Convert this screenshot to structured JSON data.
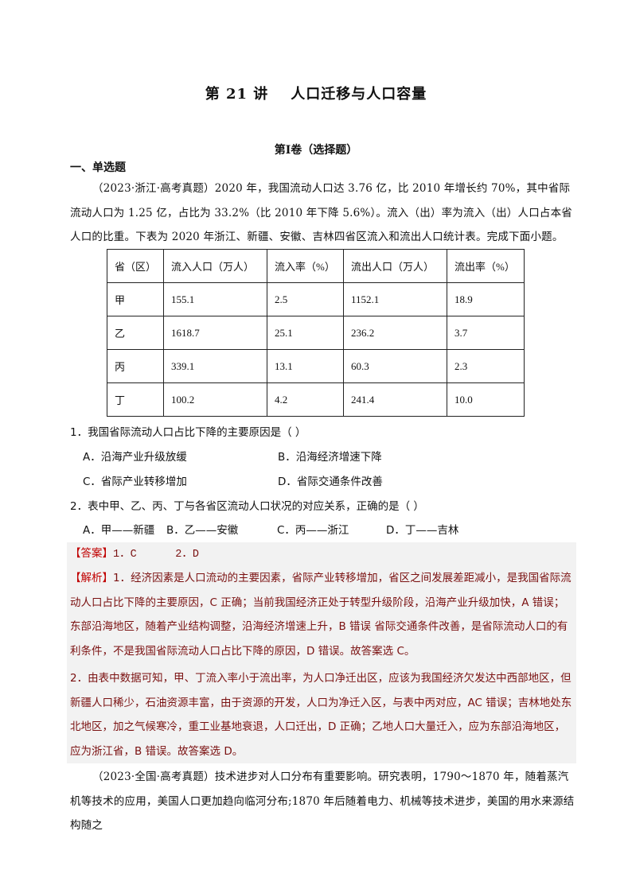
{
  "title": {
    "lecture": "第 21 讲",
    "topic": "人口迁移与人口容量"
  },
  "part": "第I卷（选择题）",
  "section": "一、单选题",
  "intro1": "（2023·浙江·高考真题）2020 年，我国流动人口达 3.76 亿，比 2010 年增长约 70%，其中省际流动人口为 1.25 亿，占比为 33.2%（比 2010 年下降 5.6%）。流入（出）率为流入（出）人口占本省人口的比重。下表为 2020 年浙江、新疆、安徽、吉林四省区流入和流出人口统计表。完成下面小题。",
  "table": {
    "headers": [
      "省（区）",
      "流入人口（万人）",
      "流入率（%）",
      "流出人口（万人）",
      "流出率（%）"
    ],
    "rows": [
      [
        "甲",
        "155.1",
        "2.5",
        "1152.1",
        "18.9"
      ],
      [
        "乙",
        "1618.7",
        "25.1",
        "236.2",
        "3.7"
      ],
      [
        "丙",
        "339.1",
        "13.1",
        "60.3",
        "2.3"
      ],
      [
        "丁",
        "100.2",
        "4.2",
        "241.4",
        "10.0"
      ]
    ]
  },
  "questions": [
    {
      "stem": "1．我国省际流动人口占比下降的主要原因是（    ）",
      "options": [
        "A．沿海产业升级放缓",
        "B．沿海经济增速下降",
        "C．省际产业转移增加",
        "D．省际交通条件改善"
      ]
    },
    {
      "stem": "2．表中甲、乙、丙、丁与各省区流动人口状况的对应关系，正确的是（    ）",
      "options": [
        "A．甲——新疆",
        "B．乙——安徽",
        "C．丙——浙江",
        "D．丁——吉林"
      ]
    }
  ],
  "answer": {
    "tag": "【答案】",
    "text": "1．C      2．D"
  },
  "analysis": {
    "tag": "【解析】",
    "p1": "1．经济因素是人口流动的主要因素，省际产业转移增加，省区之间发展差距减小，是我国省际流动人口占比下降的主要原因，C 正确；当前我国经济正处于转型升级阶段，沿海产业升级加快，A 错误；东部沿海地区，随着产业结构调整，沿海经济增速上升，B 错误 省际交通条件改善，是省际流动人口的有利条件，不是我国省际流动人口占比下降的原因，D 错误。故答案选 C。",
    "p2": "2．由表中数据可知，甲、丁流入率小于流出率，为人口净迁出区，应该为我国经济欠发达中西部地区，但新疆人口稀少，石油资源丰富，由于资源的开发，人口为净迁入区，与表中丙对应，AC 错误；吉林地处东北地区，加之气候寒冷，重工业基地衰退，人口迁出，D 正确；乙地人口大量迁入，应为东部沿海地区，应为浙江省，B 错误。故答案选 D。"
  },
  "intro2": "（2023·全国·高考真题）技术进步对人口分布有重要影响。研究表明，1790～1870 年，随着蒸汽机等技术的应用，美国人口更加趋向临河分布;1870 年后随着电力、机械等技术进步，美国的用水来源结构随之"
}
